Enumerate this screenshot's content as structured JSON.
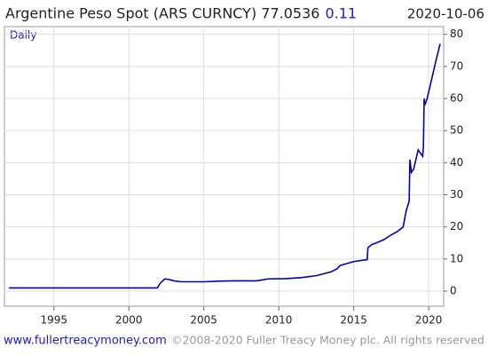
{
  "chart_data": {
    "type": "line",
    "title": "Argentine Peso Spot (ARS CURNCY) 77.0536",
    "change": "0.11",
    "date": "2020-10-06",
    "frequency": "Daily",
    "footer_link": "www.fullertreacymoney.com",
    "footer_copyright": "©2008-2020 Fuller Treacy Money plc. All rights reserved",
    "x": [
      1992.0,
      2001.9,
      2002.1,
      2002.4,
      2002.7,
      2003.0,
      2003.5,
      2005.0,
      2006.0,
      2007.0,
      2008.5,
      2008.8,
      2009.3,
      2010.5,
      2011.5,
      2012.5,
      2013.5,
      2013.9,
      2014.1,
      2015.0,
      2015.9,
      2015.95,
      2016.2,
      2016.5,
      2017.0,
      2017.5,
      2017.9,
      2018.3,
      2018.5,
      2018.7,
      2018.75,
      2018.85,
      2019.0,
      2019.3,
      2019.6,
      2019.65,
      2019.7,
      2019.75,
      2019.9,
      2020.2,
      2020.5,
      2020.77
    ],
    "series": [
      {
        "name": "ARS",
        "color": "#0000b4",
        "values": [
          1.0,
          1.0,
          2.5,
          3.8,
          3.6,
          3.2,
          2.9,
          2.9,
          3.1,
          3.2,
          3.2,
          3.4,
          3.8,
          3.9,
          4.2,
          4.8,
          6.0,
          7.0,
          8.0,
          9.2,
          9.8,
          13.5,
          14.5,
          15.0,
          16.0,
          17.5,
          18.5,
          20,
          25,
          28,
          41,
          37,
          38,
          44,
          42,
          45,
          60,
          58,
          60,
          66,
          72,
          77.0536
        ]
      }
    ],
    "xlim": [
      1991.7,
      2021.0
    ],
    "xticks": [
      1995,
      2000,
      2005,
      2010,
      2015,
      2020
    ],
    "ylim": [
      -4.7,
      82.4
    ],
    "yticks": [
      0,
      10,
      20,
      30,
      40,
      50,
      60,
      70,
      80
    ],
    "grid": true
  }
}
